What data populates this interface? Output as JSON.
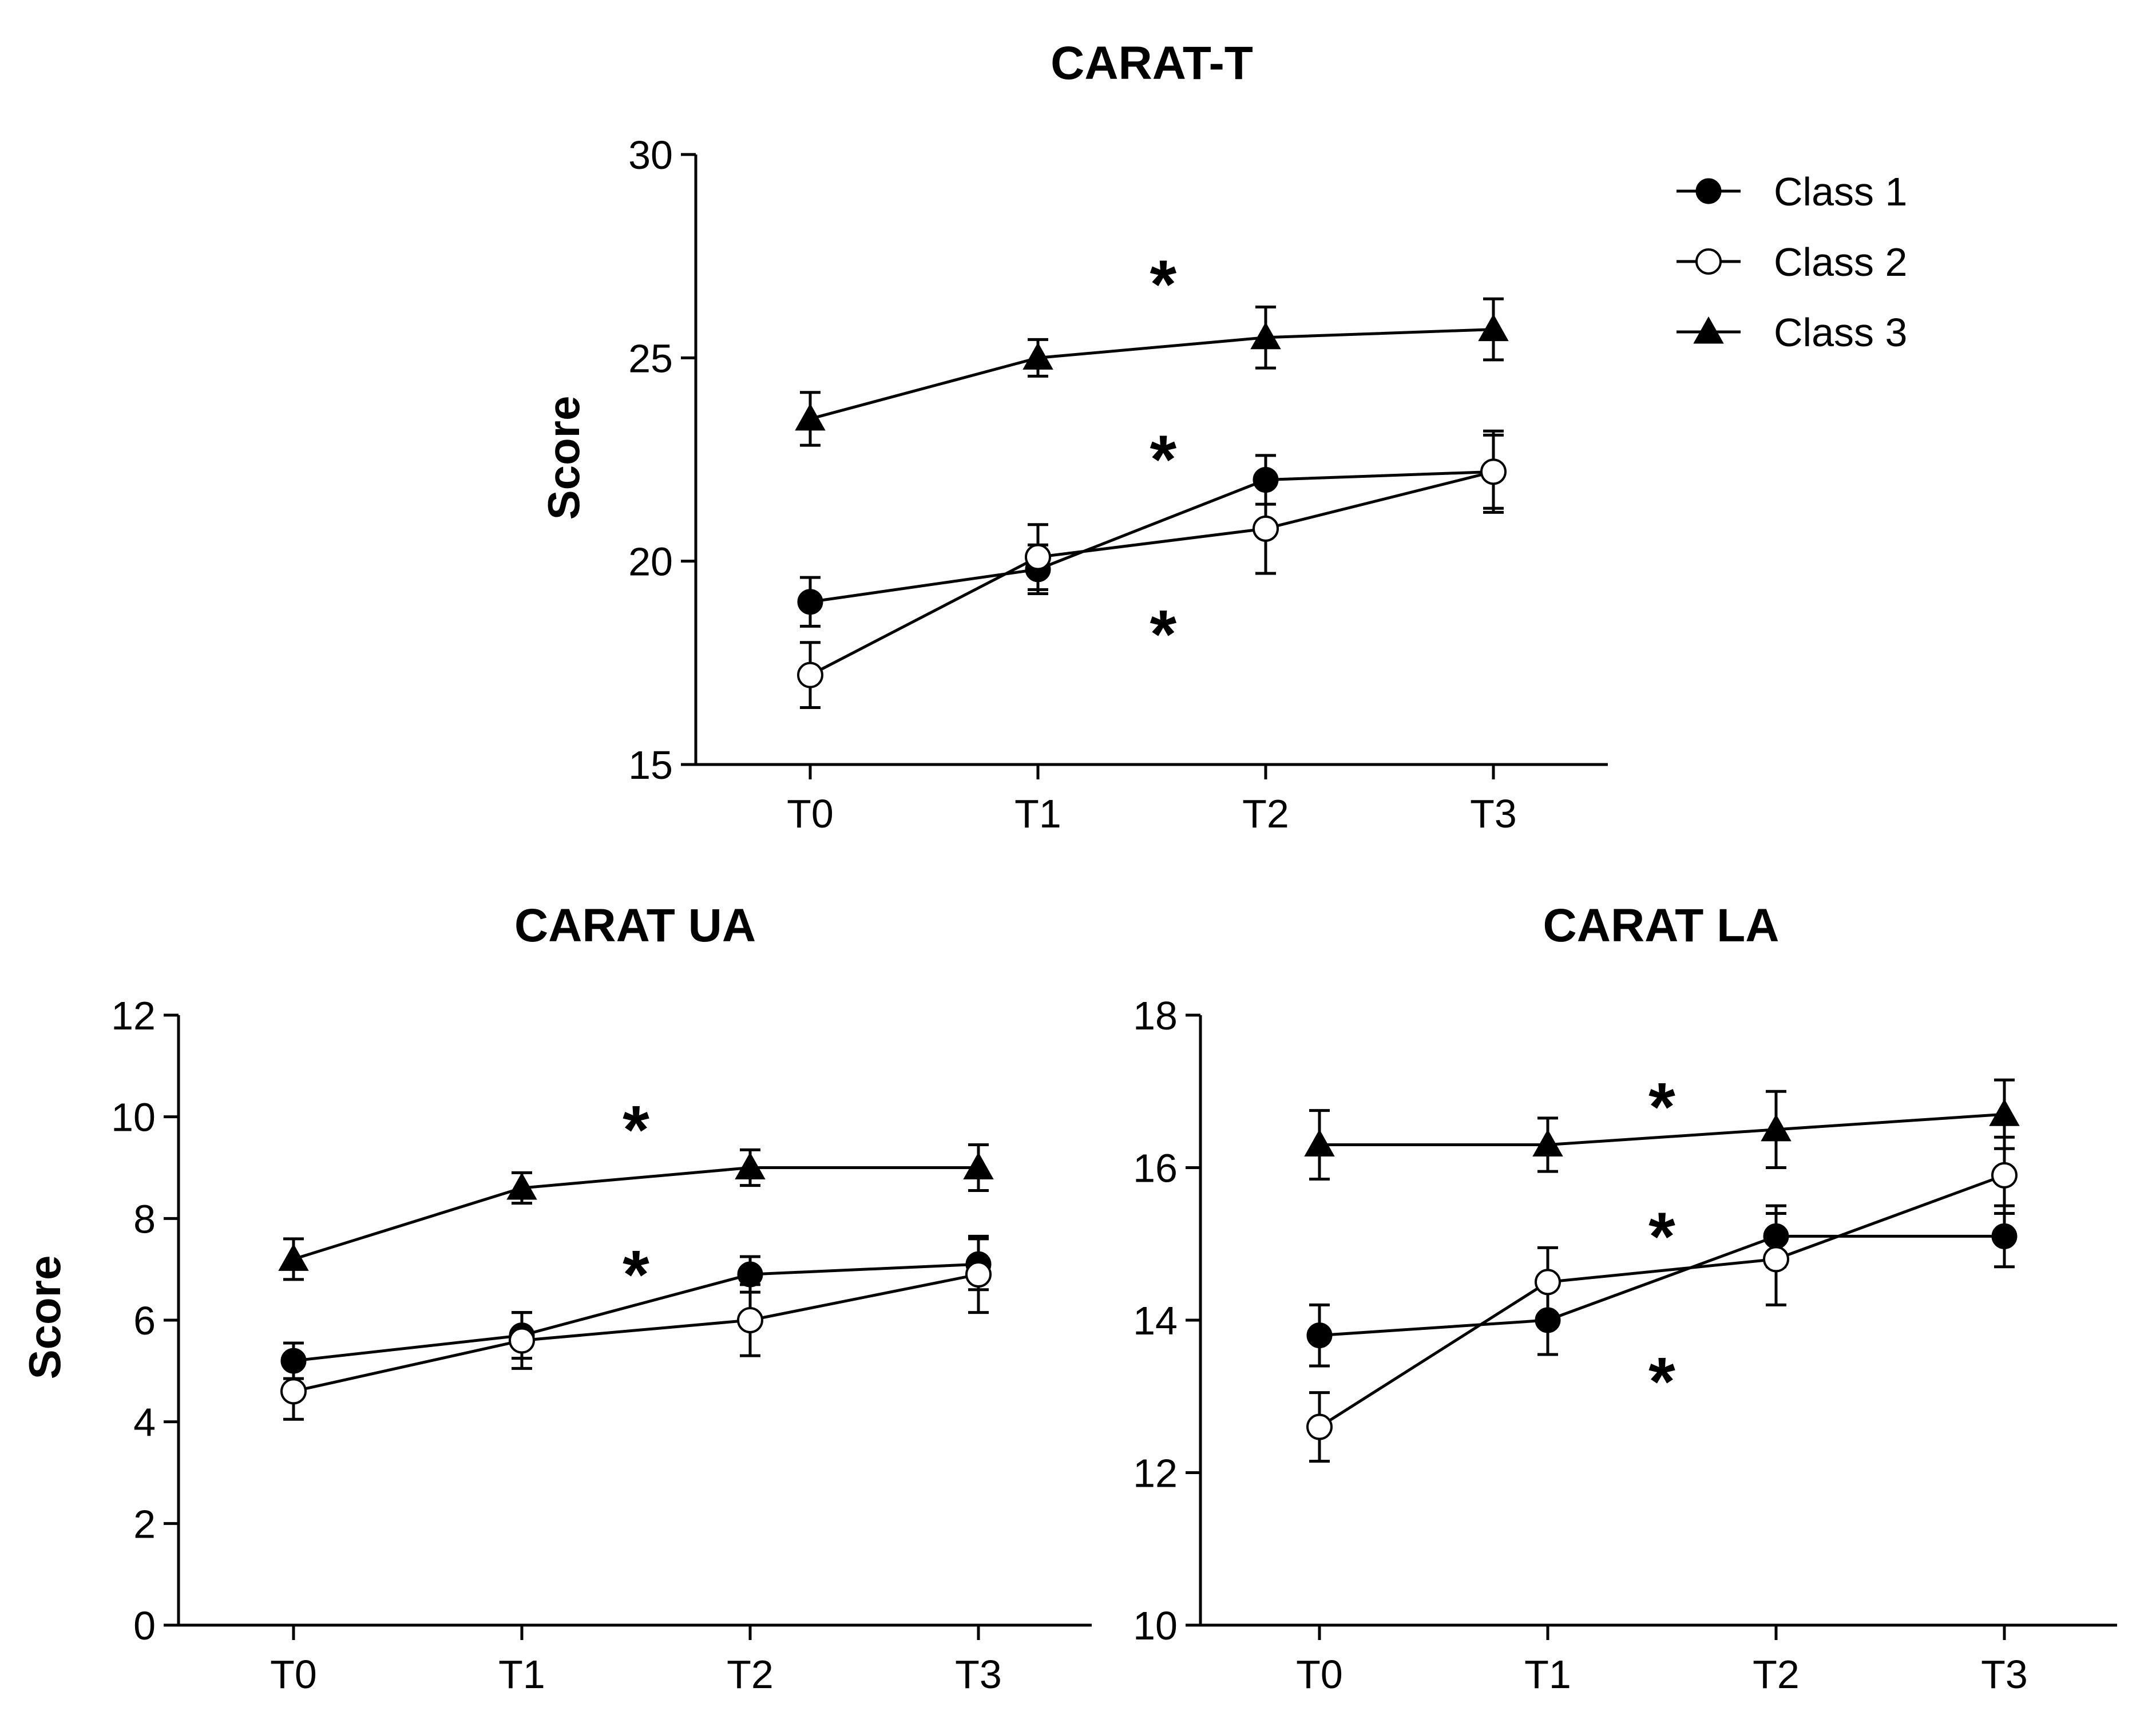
{
  "chart_data": [
    {
      "type": "line",
      "title": "CARAT-T",
      "xlabel": "",
      "ylabel": "Score",
      "categories": [
        "T0",
        "T1",
        "T2",
        "T3"
      ],
      "ylim": [
        15,
        30
      ],
      "yticks": [
        15,
        20,
        25,
        30
      ],
      "series": [
        {
          "name": "Class 1",
          "marker": "filled-circle",
          "values": [
            19.0,
            19.8,
            22.0,
            22.2
          ],
          "errors": [
            0.6,
            0.6,
            0.6,
            0.9
          ]
        },
        {
          "name": "Class 2",
          "marker": "open-circle",
          "values": [
            17.2,
            20.1,
            20.8,
            22.2
          ],
          "errors": [
            0.8,
            0.8,
            1.1,
            1.0
          ]
        },
        {
          "name": "Class 3",
          "marker": "filled-triangle",
          "values": [
            23.5,
            25.0,
            25.5,
            25.7
          ],
          "errors": [
            0.65,
            0.45,
            0.75,
            0.75
          ]
        }
      ],
      "annotations": [
        {
          "text": "*",
          "x": 1.55,
          "y": 27.0
        },
        {
          "text": "*",
          "x": 1.55,
          "y": 22.7
        },
        {
          "text": "*",
          "x": 1.55,
          "y": 18.4
        }
      ],
      "legend": {
        "position": "top-right",
        "entries": [
          "Class 1",
          "Class 2",
          "Class 3"
        ]
      }
    },
    {
      "type": "line",
      "title": "CARAT UA",
      "xlabel": "",
      "ylabel": "Score",
      "categories": [
        "T0",
        "T1",
        "T2",
        "T3"
      ],
      "ylim": [
        0,
        12
      ],
      "yticks": [
        0,
        2,
        4,
        6,
        8,
        10,
        12
      ],
      "series": [
        {
          "name": "Class 1",
          "marker": "filled-circle",
          "values": [
            5.2,
            5.7,
            6.9,
            7.1
          ],
          "errors": [
            0.35,
            0.45,
            0.35,
            0.5
          ]
        },
        {
          "name": "Class 2",
          "marker": "open-circle",
          "values": [
            4.6,
            5.6,
            6.0,
            6.9
          ],
          "errors": [
            0.55,
            0.55,
            0.7,
            0.75
          ]
        },
        {
          "name": "Class 3",
          "marker": "filled-triangle",
          "values": [
            7.2,
            8.6,
            9.0,
            9.0
          ],
          "errors": [
            0.4,
            0.3,
            0.35,
            0.45
          ]
        }
      ],
      "annotations": [
        {
          "text": "*",
          "x": 1.5,
          "y": 9.9
        },
        {
          "text": "*",
          "x": 1.5,
          "y": 7.05
        }
      ]
    },
    {
      "type": "line",
      "title": "CARAT LA",
      "xlabel": "",
      "ylabel": "",
      "categories": [
        "T0",
        "T1",
        "T2",
        "T3"
      ],
      "ylim": [
        10,
        18
      ],
      "yticks": [
        10,
        12,
        14,
        16,
        18
      ],
      "series": [
        {
          "name": "Class 1",
          "marker": "filled-circle",
          "values": [
            13.8,
            14.0,
            15.1,
            15.1
          ],
          "errors": [
            0.4,
            0.45,
            0.4,
            0.4
          ]
        },
        {
          "name": "Class 2",
          "marker": "open-circle",
          "values": [
            12.6,
            14.5,
            14.8,
            15.9
          ],
          "errors": [
            0.45,
            0.45,
            0.6,
            0.5
          ]
        },
        {
          "name": "Class 3",
          "marker": "filled-triangle",
          "values": [
            16.3,
            16.3,
            16.5,
            16.7
          ],
          "errors": [
            0.45,
            0.35,
            0.5,
            0.45
          ]
        }
      ],
      "annotations": [
        {
          "text": "*",
          "x": 1.5,
          "y": 16.9
        },
        {
          "text": "*",
          "x": 1.5,
          "y": 15.2
        },
        {
          "text": "*",
          "x": 1.5,
          "y": 13.3
        }
      ]
    }
  ]
}
